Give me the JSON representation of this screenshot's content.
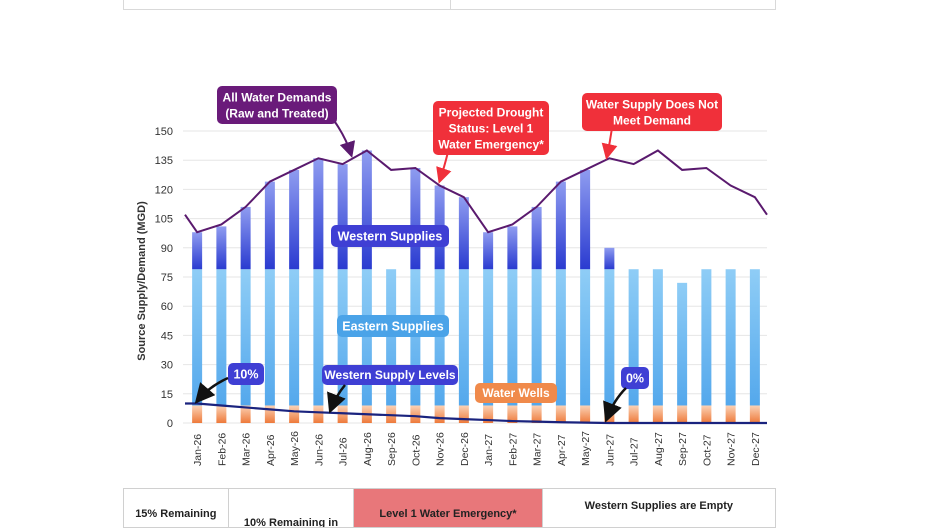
{
  "chart_data": {
    "type": "bar",
    "ylabel": "Source Supply/Demand (MGD)",
    "ylim": [
      0,
      150
    ],
    "yticks": [
      0,
      15,
      30,
      45,
      60,
      75,
      90,
      105,
      120,
      135,
      150
    ],
    "grid": true,
    "categories": [
      "Jan-26",
      "Feb-26",
      "Mar-26",
      "Apr-26",
      "May-26",
      "Jun-26",
      "Jul-26",
      "Aug-26",
      "Sep-26",
      "Oct-26",
      "Nov-26",
      "Dec-26",
      "Jan-27",
      "Feb-27",
      "Mar-27",
      "Apr-27",
      "May-27",
      "Jun-27",
      "Jul-27",
      "Aug-27",
      "Sep-27",
      "Oct-27",
      "Nov-27",
      "Dec-27"
    ],
    "series": [
      {
        "name": "Water Wells",
        "type": "stacked-bar",
        "color": "#f08a4b",
        "values": [
          9,
          9,
          9,
          9,
          9,
          9,
          9,
          9,
          9,
          9,
          9,
          9,
          9,
          9,
          9,
          9,
          9,
          9,
          9,
          9,
          9,
          9,
          9,
          9
        ]
      },
      {
        "name": "Eastern Supplies",
        "type": "stacked-bar",
        "color": "#7cc2f2",
        "values": [
          70,
          70,
          70,
          70,
          70,
          70,
          70,
          70,
          70,
          70,
          70,
          70,
          70,
          70,
          70,
          70,
          70,
          70,
          70,
          70,
          63,
          70,
          70,
          70
        ]
      },
      {
        "name": "Western Supplies",
        "type": "stacked-bar",
        "color": "#3a4fd6",
        "values": [
          19,
          22,
          32,
          45,
          51,
          57,
          54,
          61,
          -7,
          52,
          43,
          37,
          19,
          22,
          32,
          45,
          51,
          11,
          0,
          0,
          0,
          0,
          0,
          0
        ]
      },
      {
        "name": "All Water Demands (Raw and Treated)",
        "type": "line",
        "color": "#5a1a6e",
        "values": [
          98,
          102,
          111,
          124,
          130,
          136,
          133,
          140,
          130,
          131,
          122,
          116,
          98,
          102,
          111,
          124,
          130,
          136,
          133,
          140,
          130,
          131,
          122,
          116
        ],
        "lead_in": 107,
        "lead_out": 107
      }
    ],
    "western_supply_levels": {
      "name": "Western Supply Levels",
      "color": "#1a237e",
      "start": 10,
      "values": [
        10,
        9,
        8,
        7,
        6,
        5.5,
        5,
        4.5,
        4,
        3.5,
        2.5,
        2,
        1.5,
        1,
        0.7,
        0.4,
        0.2,
        0,
        0,
        0,
        0,
        0,
        0,
        0
      ]
    },
    "annotations": [
      {
        "text": "All Water Demands\n(Raw and Treated)",
        "color": "#6a1b7a"
      },
      {
        "text": "Projected Drought\nStatus: Level 1\nWater Emergency*",
        "color": "#f0303a"
      },
      {
        "text": "Water Supply Does Not\nMeet Demand",
        "color": "#f0303a"
      },
      {
        "text": "Western Supplies",
        "color": "#3f3fd4"
      },
      {
        "text": "Eastern Supplies",
        "color": "#4aa3e8"
      },
      {
        "text": "Western Supply Levels",
        "color": "#3f3fd4"
      },
      {
        "text": "10%",
        "color": "#3f3fd4"
      },
      {
        "text": "0%",
        "color": "#3f3fd4"
      },
      {
        "text": "Water Wells",
        "color": "#f08a4b"
      }
    ]
  },
  "bottom_table": {
    "c1": "15% Remaining",
    "c2": "10% Remaining in",
    "c3": "Level 1 Water Emergency*",
    "c4": "Western Supplies are Empty"
  }
}
